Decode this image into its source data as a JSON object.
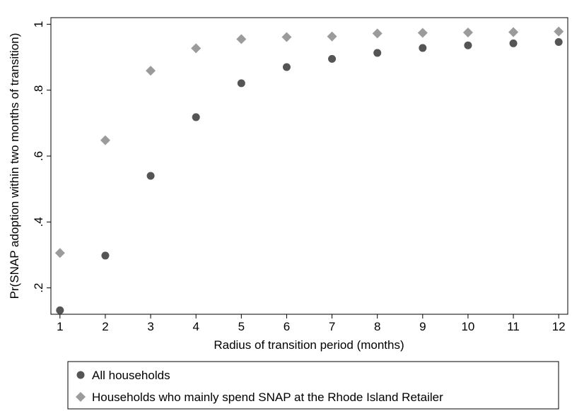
{
  "chart_data": {
    "type": "scatter",
    "xlabel": "Radius of transition period (months)",
    "ylabel": "Pr(SNAP adoption within two months of transition)",
    "xlim": [
      0.8,
      12.2
    ],
    "ylim": [
      0.12,
      1.02
    ],
    "x_ticks": [
      1,
      2,
      3,
      4,
      5,
      6,
      7,
      8,
      9,
      10,
      11,
      12
    ],
    "x_tick_labels": [
      "1",
      "2",
      "3",
      "4",
      "5",
      "6",
      "7",
      "8",
      "9",
      "10",
      "11",
      "12"
    ],
    "y_ticks": [
      0.2,
      0.4,
      0.6,
      0.8,
      1.0
    ],
    "y_tick_labels": [
      ".2",
      ".4",
      ".6",
      ".8",
      "1"
    ],
    "grid": false,
    "legend_position": "bottom",
    "x": [
      1,
      2,
      3,
      4,
      5,
      6,
      7,
      8,
      9,
      10,
      11,
      12
    ],
    "series": [
      {
        "name": "All households",
        "marker": "circle",
        "color": "#555555",
        "values": [
          0.132,
          0.298,
          0.54,
          0.718,
          0.821,
          0.87,
          0.895,
          0.913,
          0.928,
          0.936,
          0.942,
          0.946
        ]
      },
      {
        "name": "Households who mainly spend SNAP at the Rhode Island Retailer",
        "marker": "diamond",
        "color": "#9b9b9b",
        "values": [
          0.306,
          0.648,
          0.859,
          0.927,
          0.955,
          0.961,
          0.963,
          0.972,
          0.974,
          0.975,
          0.976,
          0.978
        ]
      }
    ]
  }
}
